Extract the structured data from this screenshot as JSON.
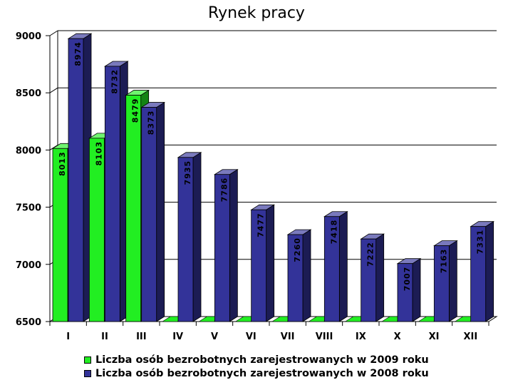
{
  "chart_data": {
    "type": "bar",
    "title": "Rynek pracy",
    "categories": [
      "I",
      "II",
      "III",
      "IV",
      "V",
      "VI",
      "VII",
      "VIII",
      "IX",
      "X",
      "XI",
      "XII"
    ],
    "series": [
      {
        "name": "Liczba osób bezrobotnych zarejestrowanych w 2009 roku",
        "color": "#22ee22",
        "values": [
          8013,
          8103,
          8479,
          null,
          null,
          null,
          null,
          null,
          null,
          null,
          null,
          null
        ]
      },
      {
        "name": "Liczba osób bezrobotnych zarejestrowanych w 2008 roku",
        "color": "#333399",
        "values": [
          8974,
          8732,
          8373,
          7935,
          7786,
          7477,
          7260,
          7418,
          7222,
          7007,
          7163,
          7331
        ]
      }
    ],
    "ylim": [
      6500,
      9000
    ],
    "yticks": [
      6500,
      7000,
      7500,
      8000,
      8500,
      9000
    ],
    "grid": true,
    "legend_position": "bottom",
    "style": "3d"
  }
}
